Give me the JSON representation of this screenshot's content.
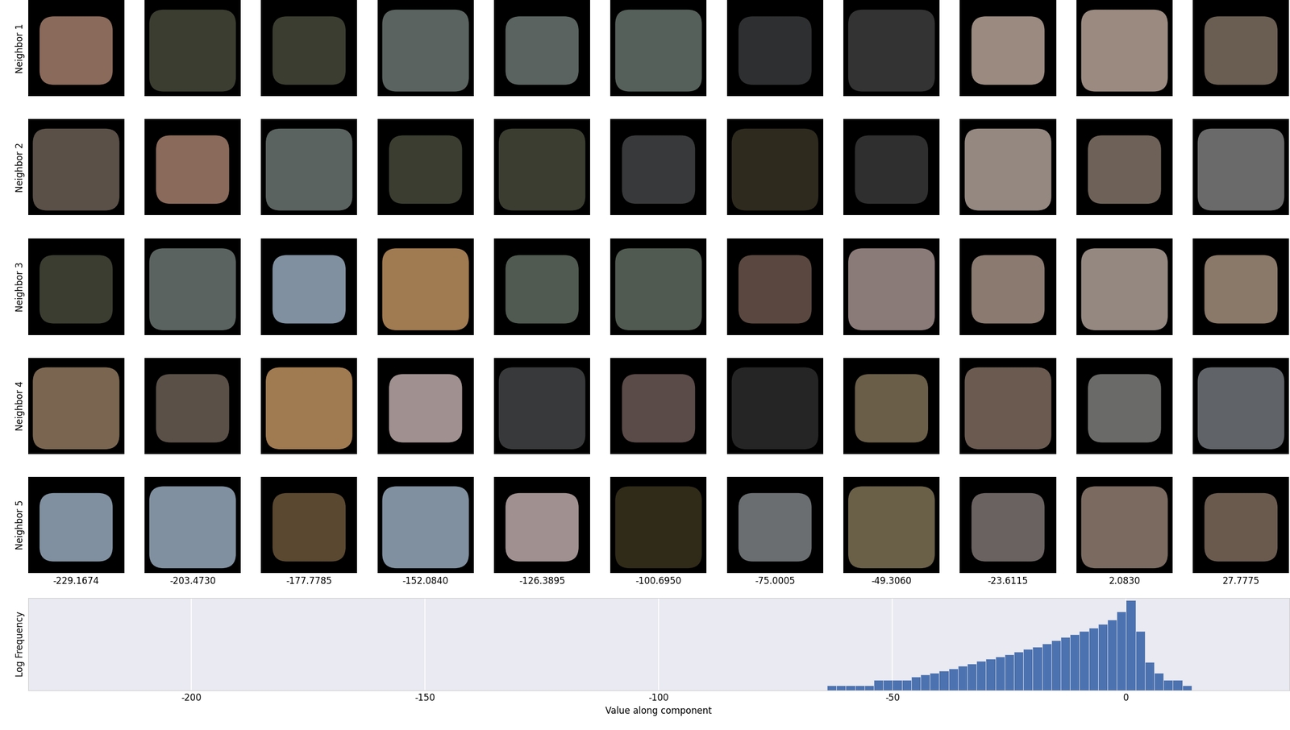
{
  "chart_data": [
    {
      "type": "image_grid",
      "row_labels": [
        "Neighbor 1",
        "Neighbor 2",
        "Neighbor 3",
        "Neighbor 4",
        "Neighbor 5"
      ],
      "column_values": [
        -229.1674,
        {
          "value": -203.473,
          "label": "-203.4730"
        },
        -177.7785,
        {
          "value": -152.084,
          "label": "-152.0840"
        },
        -126.3895,
        {
          "value": -100.695,
          "label": "-100.6950"
        },
        -75.0005,
        {
          "value": -49.306,
          "label": "-49.3060"
        },
        -23.6115,
        {
          "value": 2.083,
          "label": "2.0830"
        },
        27.7775
      ],
      "colors": [
        [
          "#8a6a5a",
          "#3a3d30",
          "#3a3d30",
          "#5a6360",
          "#5a6360",
          "#56605a",
          "#2e2f30",
          "#333333",
          "#9a8a80",
          "#9a8a80",
          "#6a5e52"
        ],
        [
          "#5a5048",
          "#8a6a5a",
          "#5a6360",
          "#3a3d30",
          "#3a3d30",
          "#38393a",
          "#2e2a1e",
          "#2f2f30",
          "#948880",
          "#6e6258",
          "#6a6a6a"
        ],
        [
          "#3a3d30",
          "#5a6360",
          "#8090a0",
          "#a07a50",
          "#505a50",
          "#505a50",
          "#5a4840",
          "#8a7a78",
          "#8a7a70",
          "#948880",
          "#8a7868"
        ],
        [
          "#7a6650",
          "#5a5048",
          "#a07a50",
          "#a09090",
          "#38393a",
          "#5a4a48",
          "#252525",
          "#6a5e48",
          "#6a5a50",
          "#6a6a68",
          "#606468"
        ],
        [
          "#8090a0",
          "#8090a0",
          "#5a4830",
          "#8090a0",
          "#a09090",
          "#302a18",
          "#6a6e70",
          "#6a6048",
          "#6a6260",
          "#7a6a60",
          "#6a5a4e"
        ]
      ]
    },
    {
      "type": "histogram",
      "x_label": "Value along component",
      "y_label": "Log Frequency",
      "bins": [
        -64,
        -62,
        -60,
        -58,
        -56,
        -54,
        -52,
        -50,
        -48,
        -46,
        -44,
        -42,
        -40,
        -38,
        -36,
        -34,
        -32,
        -30,
        -28,
        -26,
        -24,
        -22,
        -20,
        -18,
        -16,
        -14,
        -12,
        -10,
        -8,
        -6,
        -4,
        -2,
        0,
        2,
        4,
        6,
        8,
        10,
        12,
        14
      ],
      "counts": [
        1,
        1,
        1,
        1,
        1,
        2,
        2,
        2,
        2,
        3,
        4,
        5,
        7,
        9,
        13,
        17,
        24,
        33,
        43,
        59,
        80,
        120,
        163,
        245,
        369,
        552,
        832,
        1252,
        1880,
        3130,
        5780,
        15900,
        73500,
        1252,
        21,
        5,
        2,
        2,
        1
      ],
      "color": "#4c72b0",
      "xlim": [
        -235,
        35
      ],
      "xticks": [
        -200,
        -150,
        -100,
        -50,
        0
      ],
      "ylim": [
        0.5,
        100000
      ],
      "log": "y",
      "grid": true,
      "tick_labels": "x"
    }
  ]
}
